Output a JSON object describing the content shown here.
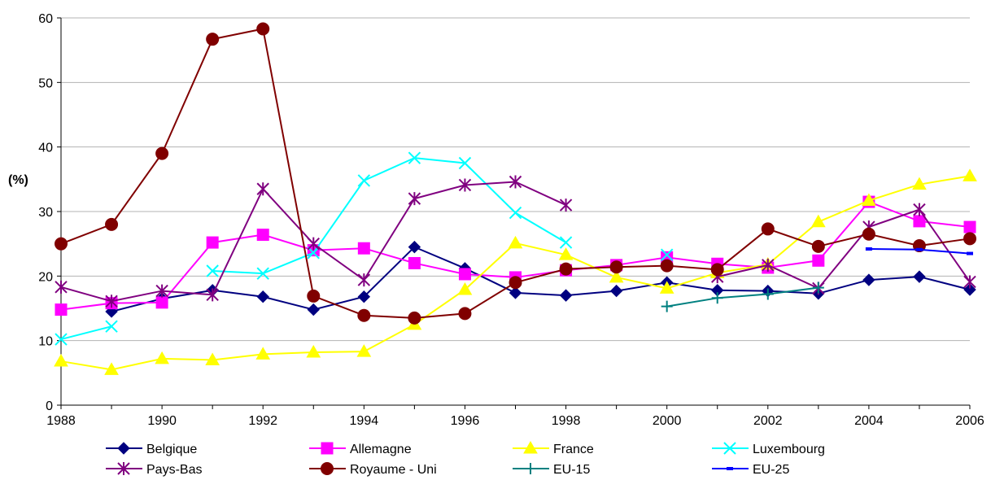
{
  "chart_data": {
    "type": "line",
    "ylabel": "(%)",
    "xlabel": "",
    "ylim": [
      0,
      60
    ],
    "yticks": [
      0,
      10,
      20,
      30,
      40,
      50,
      60
    ],
    "xlim": [
      1988,
      2006
    ],
    "xticks": [
      1988,
      1990,
      1992,
      1994,
      1996,
      1998,
      2000,
      2002,
      2004,
      2006
    ],
    "grid": "horizontal",
    "legend_position": "bottom",
    "x": [
      1988,
      1989,
      1990,
      1991,
      1992,
      1993,
      1994,
      1995,
      1996,
      1997,
      1998,
      1999,
      2000,
      2001,
      2002,
      2003,
      2004,
      2005,
      2006
    ],
    "series": [
      {
        "name": "Belgique",
        "color": "#000080",
        "marker": "diamond",
        "values": [
          null,
          14.5,
          16.5,
          17.8,
          16.8,
          14.8,
          16.8,
          24.5,
          21.2,
          17.4,
          17.0,
          17.7,
          19.0,
          17.8,
          17.7,
          17.3,
          19.4,
          19.9,
          17.9
        ]
      },
      {
        "name": "Allemagne",
        "color": "#FF00FF",
        "marker": "square",
        "values": [
          14.8,
          15.8,
          15.9,
          25.2,
          26.4,
          24.0,
          24.3,
          22.0,
          20.3,
          19.8,
          20.9,
          21.7,
          22.9,
          21.9,
          21.3,
          22.4,
          31.5,
          28.5,
          27.6
        ]
      },
      {
        "name": "France",
        "color": "#FFFF00",
        "marker": "triangle",
        "values": [
          6.8,
          5.5,
          7.2,
          7.0,
          7.9,
          8.2,
          8.3,
          12.5,
          17.9,
          25.1,
          23.3,
          19.8,
          18.1,
          20.5,
          21.8,
          28.4,
          31.7,
          34.2,
          35.5
        ]
      },
      {
        "name": "Luxembourg",
        "color": "#00FFFF",
        "marker": "x",
        "values": [
          10.2,
          12.2,
          null,
          20.8,
          20.4,
          23.6,
          34.8,
          38.3,
          37.5,
          29.8,
          25.2,
          null,
          23.3,
          null,
          null,
          null,
          null,
          null,
          null
        ]
      },
      {
        "name": "Pays-Bas",
        "color": "#800080",
        "marker": "star",
        "values": [
          18.3,
          16.1,
          17.7,
          17.1,
          33.5,
          25.0,
          19.4,
          32.0,
          34.1,
          34.6,
          31.0,
          null,
          null,
          19.9,
          21.7,
          18.1,
          27.6,
          30.3,
          19.1
        ]
      },
      {
        "name": "Royaume - Uni",
        "color": "#800000",
        "marker": "circle",
        "values": [
          25.0,
          28.0,
          39.0,
          56.7,
          58.3,
          16.9,
          13.9,
          13.5,
          14.2,
          19.0,
          21.1,
          21.4,
          21.6,
          21.0,
          27.3,
          24.6,
          26.5,
          24.7,
          25.8
        ]
      },
      {
        "name": "EU-15",
        "color": "#008080",
        "marker": "plus",
        "values": [
          null,
          null,
          null,
          null,
          null,
          null,
          null,
          null,
          null,
          null,
          null,
          null,
          15.3,
          16.6,
          17.2,
          18.2,
          null,
          null,
          null
        ]
      },
      {
        "name": "EU-25",
        "color": "#0000FF",
        "marker": "dash",
        "values": [
          null,
          null,
          null,
          null,
          null,
          null,
          null,
          null,
          null,
          null,
          null,
          null,
          null,
          null,
          null,
          null,
          24.2,
          24.1,
          23.5
        ]
      }
    ]
  }
}
